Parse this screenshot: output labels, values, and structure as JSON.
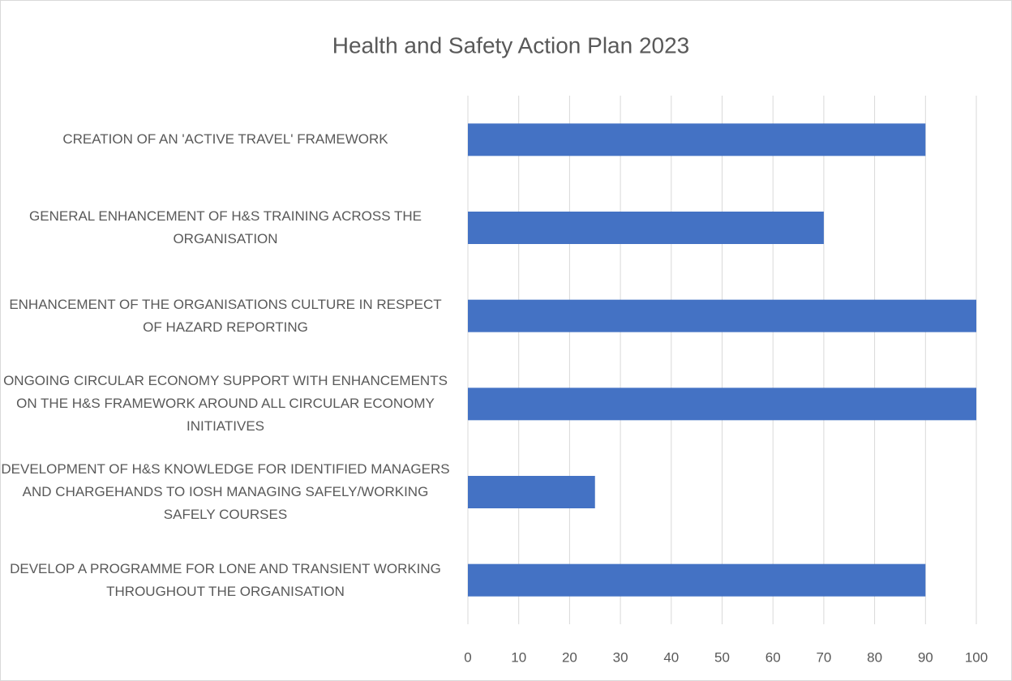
{
  "chart_data": {
    "type": "barh",
    "title": "Health and Safety Action Plan 2023",
    "categories": [
      "CREATION OF AN 'ACTIVE TRAVEL' FRAMEWORK",
      "GENERAL ENHANCEMENT OF H&S TRAINING ACROSS THE ORGANISATION",
      "ENHANCEMENT OF THE ORGANISATIONS CULTURE IN RESPECT OF HAZARD REPORTING",
      "ONGOING CIRCULAR ECONOMY SUPPORT WITH ENHANCEMENTS ON THE H&S FRAMEWORK AROUND ALL CIRCULAR ECONOMY INITIATIVES",
      "DEVELOPMENT OF H&S KNOWLEDGE FOR IDENTIFIED MANAGERS AND CHARGEHANDS TO IOSH MANAGING SAFELY/WORKING SAFELY COURSES",
      "DEVELOP A PROGRAMME FOR LONE AND TRANSIENT WORKING THROUGHOUT THE ORGANISATION"
    ],
    "values": [
      90,
      70,
      100,
      100,
      25,
      90
    ],
    "color": "#4472c4",
    "xlim": [
      0,
      100
    ],
    "xticks": [
      0,
      10,
      20,
      30,
      40,
      50,
      60,
      70,
      80,
      90,
      100
    ],
    "grid": true
  }
}
